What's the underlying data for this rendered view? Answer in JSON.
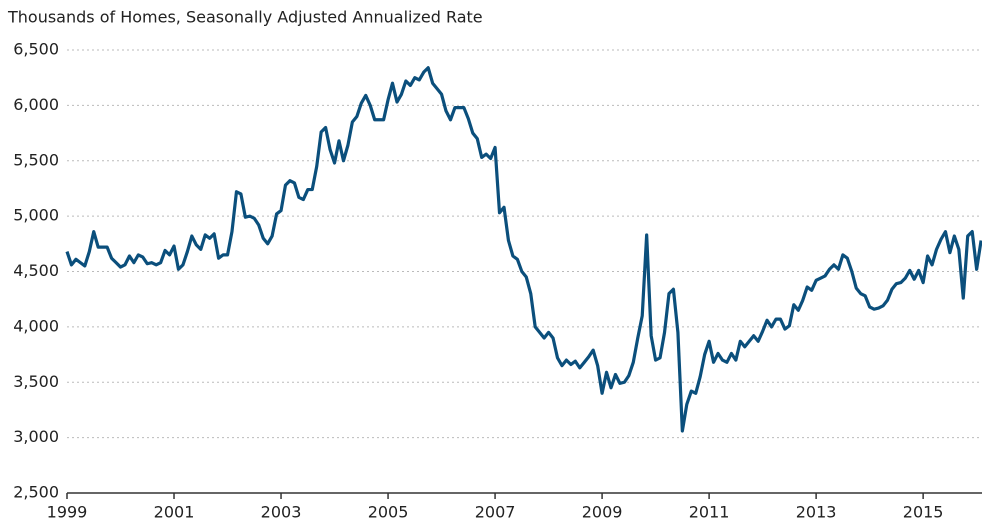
{
  "chart_data": {
    "type": "line",
    "title": "Thousands of Homes, Seasonally Adjusted Annualized Rate",
    "xlim": [
      1999,
      2016.1
    ],
    "xticks": [
      1999,
      2001,
      2003,
      2005,
      2007,
      2009,
      2011,
      2013,
      2015
    ],
    "ylim": [
      2500,
      6500
    ],
    "yticks": [
      {
        "value": 2500,
        "label": "2,500"
      },
      {
        "value": 3000,
        "label": "3,000"
      },
      {
        "value": 3500,
        "label": "3,500"
      },
      {
        "value": 4000,
        "label": "4,000"
      },
      {
        "value": 4500,
        "label": "4,500"
      },
      {
        "value": 5000,
        "label": "5,000"
      },
      {
        "value": 5500,
        "label": "5,500"
      },
      {
        "value": 6000,
        "label": "6,000"
      },
      {
        "value": 6500,
        "label": "6,500"
      }
    ],
    "grid": true,
    "x": [
      1999,
      1999.083,
      1999.167,
      1999.25,
      1999.333,
      1999.417,
      1999.5,
      1999.583,
      1999.667,
      1999.75,
      1999.833,
      1999.917,
      2000,
      2000.083,
      2000.167,
      2000.25,
      2000.333,
      2000.417,
      2000.5,
      2000.583,
      2000.667,
      2000.75,
      2000.833,
      2000.917,
      2001,
      2001.083,
      2001.167,
      2001.25,
      2001.333,
      2001.417,
      2001.5,
      2001.583,
      2001.667,
      2001.75,
      2001.833,
      2001.917,
      2002,
      2002.083,
      2002.167,
      2002.25,
      2002.333,
      2002.417,
      2002.5,
      2002.583,
      2002.667,
      2002.75,
      2002.833,
      2002.917,
      2003,
      2003.083,
      2003.167,
      2003.25,
      2003.333,
      2003.417,
      2003.5,
      2003.583,
      2003.667,
      2003.75,
      2003.833,
      2003.917,
      2004,
      2004.083,
      2004.167,
      2004.25,
      2004.333,
      2004.417,
      2004.5,
      2004.583,
      2004.667,
      2004.75,
      2004.833,
      2004.917,
      2005,
      2005.083,
      2005.167,
      2005.25,
      2005.333,
      2005.417,
      2005.5,
      2005.583,
      2005.667,
      2005.75,
      2005.833,
      2005.917,
      2006,
      2006.083,
      2006.167,
      2006.25,
      2006.333,
      2006.417,
      2006.5,
      2006.583,
      2006.667,
      2006.75,
      2006.833,
      2006.917,
      2007,
      2007.083,
      2007.167,
      2007.25,
      2007.333,
      2007.417,
      2007.5,
      2007.583,
      2007.667,
      2007.75,
      2007.833,
      2007.917,
      2008,
      2008.083,
      2008.167,
      2008.25,
      2008.333,
      2008.417,
      2008.5,
      2008.583,
      2008.667,
      2008.75,
      2008.833,
      2008.917,
      2009,
      2009.083,
      2009.167,
      2009.25,
      2009.333,
      2009.417,
      2009.5,
      2009.583,
      2009.667,
      2009.75,
      2009.833,
      2009.917,
      2010,
      2010.083,
      2010.167,
      2010.25,
      2010.333,
      2010.417,
      2010.5,
      2010.583,
      2010.667,
      2010.75,
      2010.833,
      2010.917,
      2011,
      2011.083,
      2011.167,
      2011.25,
      2011.333,
      2011.417,
      2011.5,
      2011.583,
      2011.667,
      2011.75,
      2011.833,
      2011.917,
      2012,
      2012.083,
      2012.167,
      2012.25,
      2012.333,
      2012.417,
      2012.5,
      2012.583,
      2012.667,
      2012.75,
      2012.833,
      2012.917,
      2013,
      2013.083,
      2013.167,
      2013.25,
      2013.333,
      2013.417,
      2013.5,
      2013.583,
      2013.667,
      2013.75,
      2013.833,
      2013.917,
      2014,
      2014.083,
      2014.167,
      2014.25,
      2014.333,
      2014.417,
      2014.5,
      2014.583,
      2014.667,
      2014.75,
      2014.833,
      2014.917,
      2015,
      2015.083,
      2015.167,
      2015.25,
      2015.333,
      2015.417,
      2015.5,
      2015.583,
      2015.667,
      2015.75,
      2015.833,
      2015.917,
      2016,
      2016.083
    ],
    "series": [
      {
        "color": "#0b4f7c",
        "values": [
          4680,
          4560,
          4610,
          4580,
          4550,
          4680,
          4860,
          4720,
          4720,
          4720,
          4620,
          4580,
          4540,
          4560,
          4640,
          4580,
          4650,
          4630,
          4570,
          4580,
          4560,
          4580,
          4690,
          4650,
          4730,
          4520,
          4560,
          4680,
          4820,
          4740,
          4700,
          4830,
          4800,
          4840,
          4620,
          4650,
          4650,
          4860,
          5220,
          5200,
          4990,
          5000,
          4980,
          4920,
          4800,
          4750,
          4820,
          5020,
          5050,
          5280,
          5320,
          5300,
          5170,
          5150,
          5240,
          5240,
          5450,
          5760,
          5800,
          5600,
          5480,
          5680,
          5500,
          5640,
          5850,
          5900,
          6020,
          6090,
          6000,
          5870,
          5870,
          5870,
          6050,
          6200,
          6030,
          6100,
          6220,
          6180,
          6250,
          6230,
          6300,
          6340,
          6200,
          6150,
          6100,
          5950,
          5870,
          5980,
          5980,
          5980,
          5880,
          5750,
          5700,
          5530,
          5560,
          5520,
          5620,
          5030,
          5080,
          4780,
          4640,
          4610,
          4500,
          4450,
          4300,
          4000,
          3950,
          3900,
          3950,
          3900,
          3720,
          3650,
          3700,
          3660,
          3690,
          3630,
          3680,
          3730,
          3790,
          3650,
          3400,
          3590,
          3450,
          3570,
          3490,
          3500,
          3560,
          3680,
          3900,
          4100,
          4830,
          3920,
          3700,
          3720,
          3950,
          4300,
          4340,
          3950,
          3060,
          3300,
          3420,
          3400,
          3550,
          3750,
          3870,
          3680,
          3760,
          3700,
          3680,
          3760,
          3700,
          3870,
          3820,
          3870,
          3920,
          3870,
          3960,
          4060,
          4000,
          4070,
          4070,
          3980,
          4010,
          4200,
          4150,
          4240,
          4360,
          4330,
          4420,
          4440,
          4460,
          4520,
          4560,
          4520,
          4650,
          4620,
          4500,
          4350,
          4300,
          4280,
          4180,
          4160,
          4170,
          4190,
          4240,
          4340,
          4390,
          4400,
          4440,
          4510,
          4430,
          4510,
          4400,
          4640,
          4560,
          4700,
          4790,
          4860,
          4670,
          4820,
          4700,
          4260,
          4820,
          4860,
          4520,
          4780
        ]
      }
    ]
  }
}
